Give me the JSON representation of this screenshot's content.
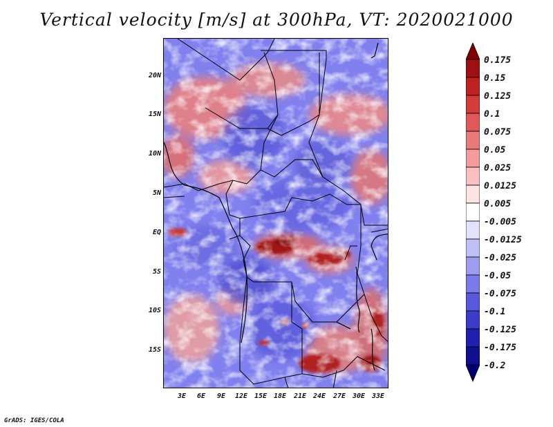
{
  "title": "Vertical velocity [m/s] at 300hPa, VT: 2020021000",
  "footer": "GrADS: IGES/COLA",
  "map": {
    "lat_ticks": [
      "20N",
      "15N",
      "10N",
      "5N",
      "EQ",
      "5S",
      "10S",
      "15S"
    ],
    "lon_ticks": [
      "3E",
      "6E",
      "9E",
      "12E",
      "15E",
      "18E",
      "21E",
      "24E",
      "27E",
      "30E",
      "33E"
    ]
  },
  "colorbar": {
    "labels": [
      "0.175",
      "0.15",
      "0.125",
      "0.1",
      "0.075",
      "0.05",
      "0.025",
      "0.0125",
      "0.005",
      "-0.005",
      "-0.0125",
      "-0.025",
      "-0.05",
      "-0.075",
      "-0.1",
      "-0.125",
      "-0.175",
      "-0.2"
    ],
    "colors": [
      "#7f0000",
      "#a11010",
      "#bf2020",
      "#d43b3b",
      "#e05858",
      "#ea7a7a",
      "#f29c9c",
      "#f8c0c0",
      "#fce2e2",
      "#ffffff",
      "#e2e2fc",
      "#c0c0f6",
      "#9c9cf0",
      "#7a7ae8",
      "#5858dc",
      "#3b3bcc",
      "#2020b0",
      "#10108f",
      "#00006e"
    ]
  }
}
